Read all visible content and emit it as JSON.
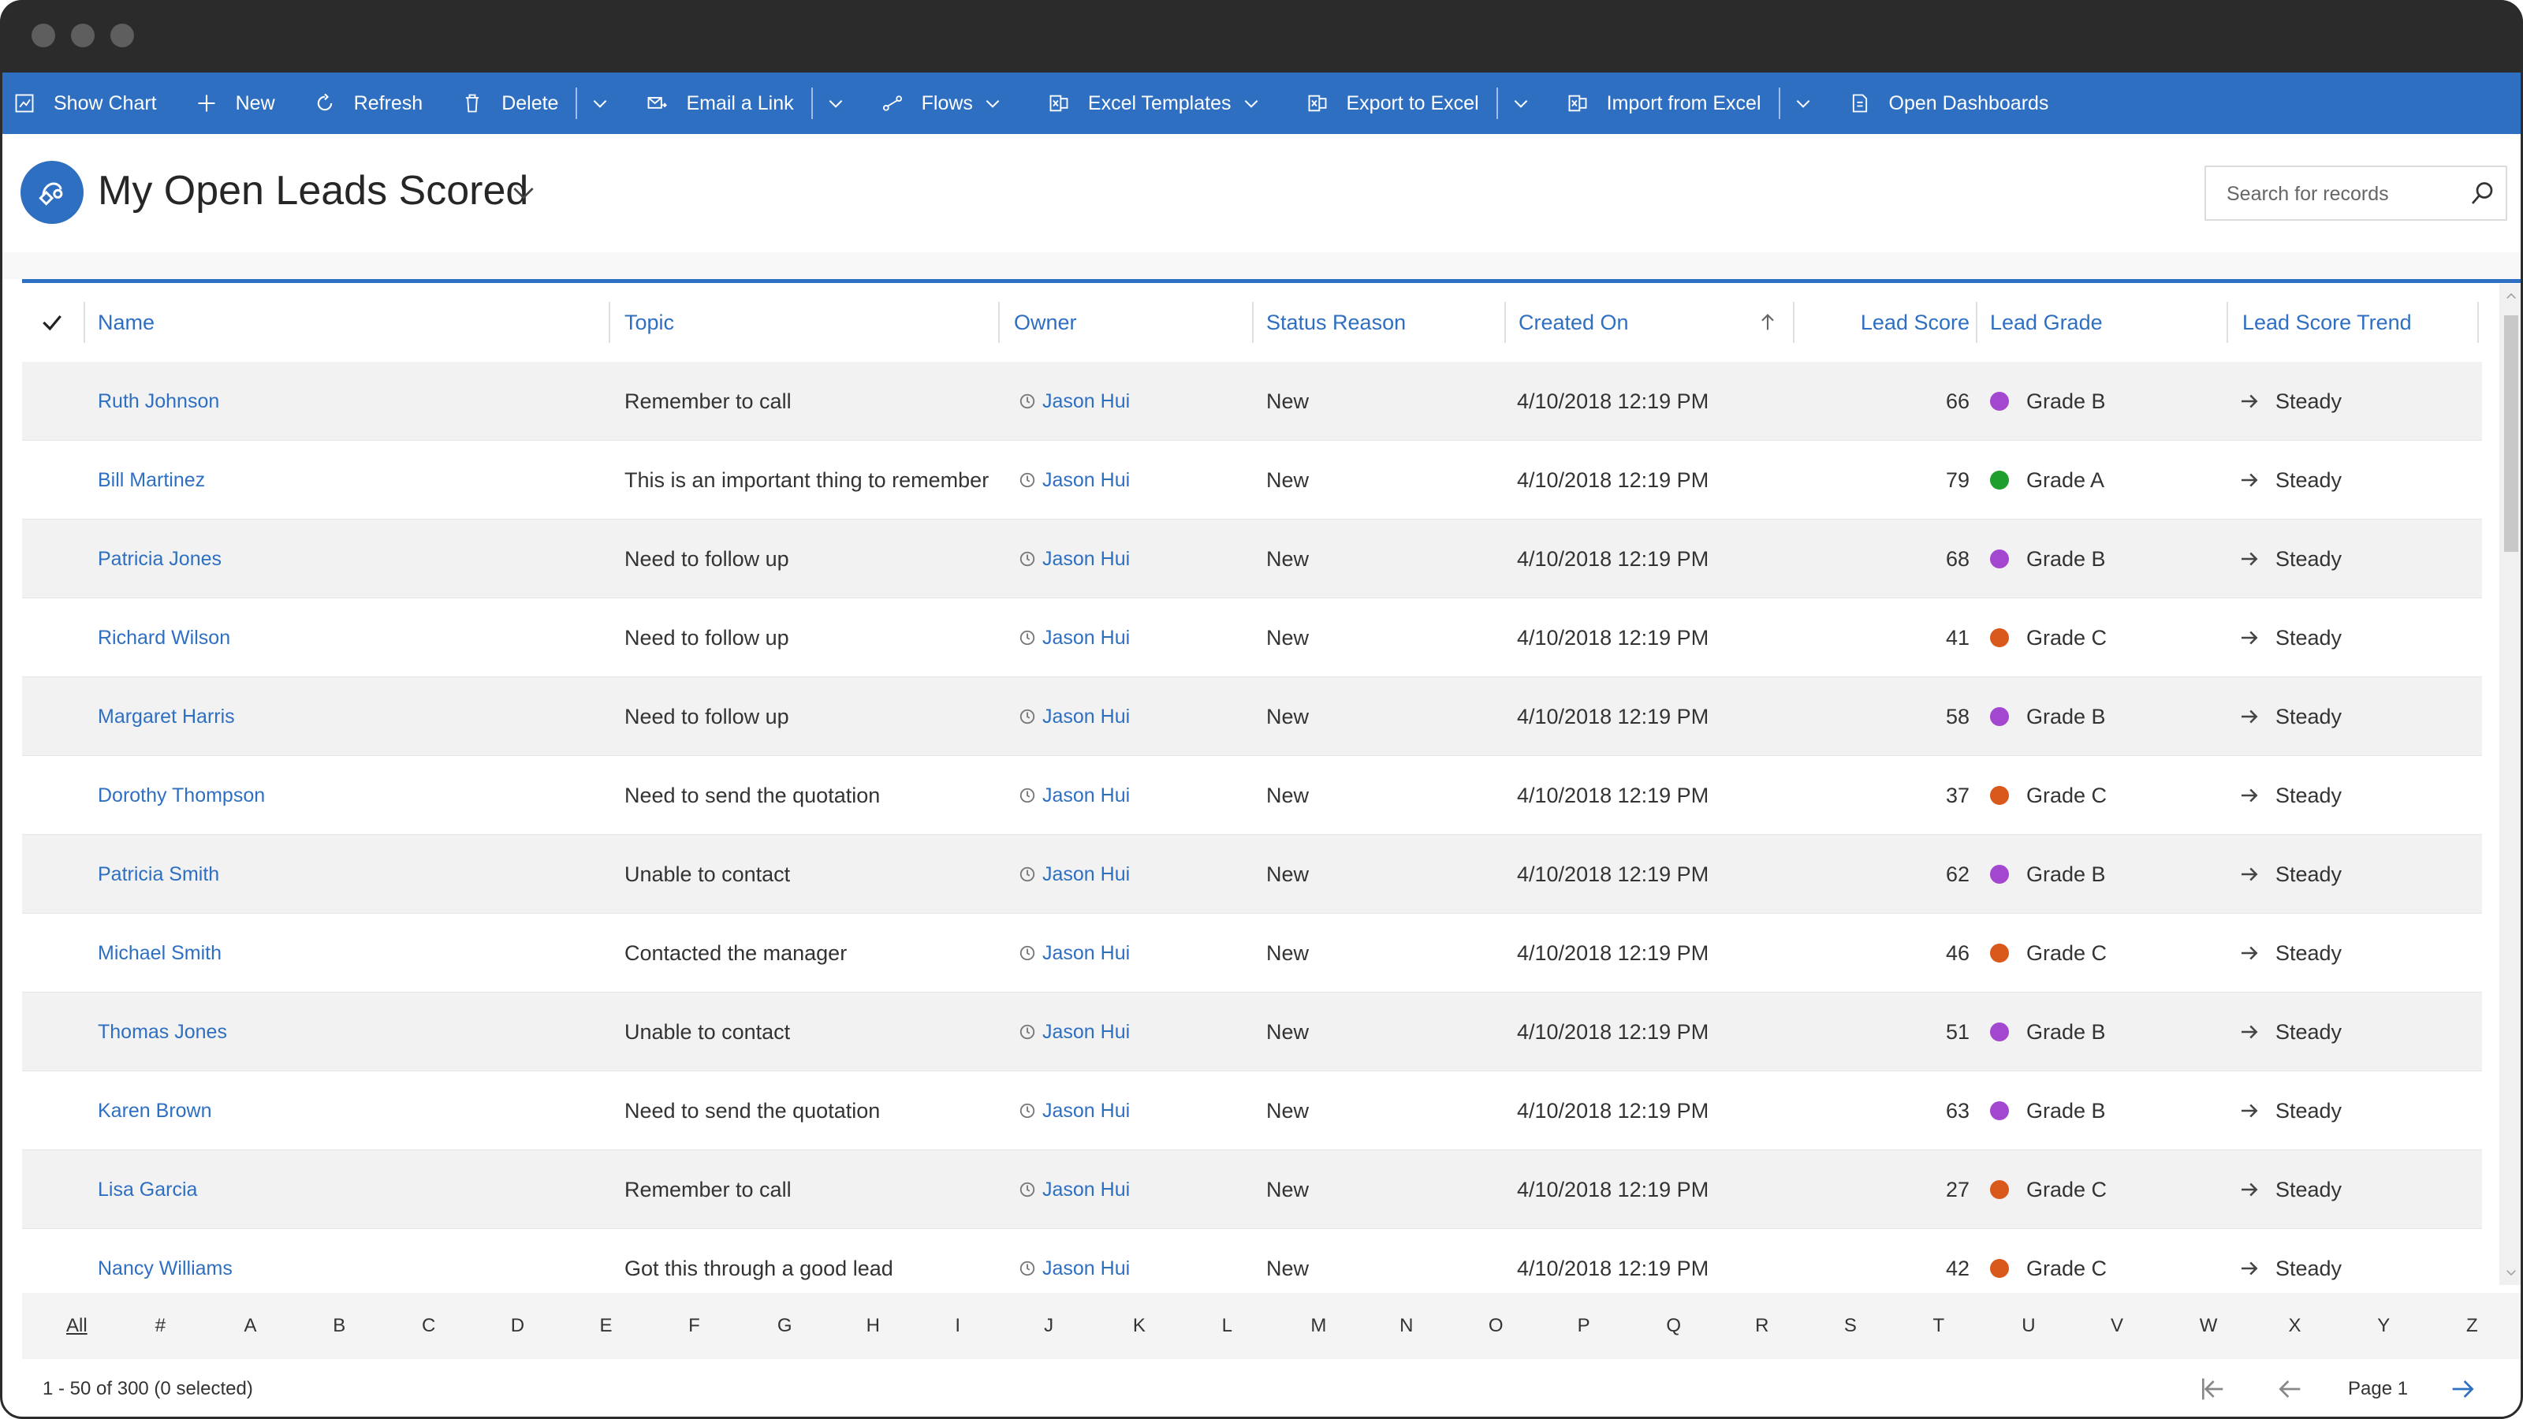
{
  "commandbar": {
    "items": [
      {
        "label": "Show Chart",
        "icon": "chart-icon"
      },
      {
        "label": "New",
        "icon": "plus-icon"
      },
      {
        "label": "Refresh",
        "icon": "refresh-icon"
      },
      {
        "label": "Delete",
        "icon": "trash-icon"
      },
      {
        "label": "Email a Link",
        "icon": "email-link-icon"
      },
      {
        "label": "Flows",
        "icon": "flows-icon"
      },
      {
        "label": "Excel Templates",
        "icon": "excel-icon"
      },
      {
        "label": "Export to Excel",
        "icon": "excel-icon"
      },
      {
        "label": "Import from Excel",
        "icon": "excel-icon"
      },
      {
        "label": "Open Dashboards",
        "icon": "dashboard-icon"
      }
    ]
  },
  "header": {
    "title": "My Open Leads Scored",
    "entity_icon": "lead-icon"
  },
  "search": {
    "placeholder": "Search for records"
  },
  "grid": {
    "columns": [
      "Name",
      "Topic",
      "Owner",
      "Status Reason",
      "Created On",
      "Lead Score",
      "Lead Grade",
      "Lead Score Trend"
    ],
    "sort_indicator": "arrow-up-icon",
    "rows": [
      {
        "name": "Ruth Johnson",
        "topic": "Remember to call",
        "owner": "Jason Hui",
        "status": "New",
        "created": "4/10/2018 12:19 PM",
        "score": "66",
        "grade": "Grade B",
        "grade_color": "#a347d1",
        "trend": "Steady"
      },
      {
        "name": "Bill Martinez",
        "topic": "This is an important thing to remember",
        "owner": "Jason Hui",
        "status": "New",
        "created": "4/10/2018 12:19 PM",
        "score": "79",
        "grade": "Grade A",
        "grade_color": "#1e9e2c",
        "trend": "Steady"
      },
      {
        "name": "Patricia Jones",
        "topic": "Need to follow up",
        "owner": "Jason Hui",
        "status": "New",
        "created": "4/10/2018 12:19 PM",
        "score": "68",
        "grade": "Grade B",
        "grade_color": "#a347d1",
        "trend": "Steady"
      },
      {
        "name": "Richard Wilson",
        "topic": "Need to follow up",
        "owner": "Jason Hui",
        "status": "New",
        "created": "4/10/2018 12:19 PM",
        "score": "41",
        "grade": "Grade C",
        "grade_color": "#d9591b",
        "trend": "Steady"
      },
      {
        "name": "Margaret Harris",
        "topic": "Need to follow up",
        "owner": "Jason Hui",
        "status": "New",
        "created": "4/10/2018 12:19 PM",
        "score": "58",
        "grade": "Grade B",
        "grade_color": "#a347d1",
        "trend": "Steady"
      },
      {
        "name": "Dorothy Thompson",
        "topic": "Need to send the quotation",
        "owner": "Jason Hui",
        "status": "New",
        "created": "4/10/2018 12:19 PM",
        "score": "37",
        "grade": "Grade C",
        "grade_color": "#d9591b",
        "trend": "Steady"
      },
      {
        "name": "Patricia Smith",
        "topic": "Unable to contact",
        "owner": "Jason Hui",
        "status": "New",
        "created": "4/10/2018 12:19 PM",
        "score": "62",
        "grade": "Grade B",
        "grade_color": "#a347d1",
        "trend": "Steady"
      },
      {
        "name": "Michael Smith",
        "topic": "Contacted the manager",
        "owner": "Jason Hui",
        "status": "New",
        "created": "4/10/2018 12:19 PM",
        "score": "46",
        "grade": "Grade C",
        "grade_color": "#d9591b",
        "trend": "Steady"
      },
      {
        "name": "Thomas Jones",
        "topic": "Unable to contact",
        "owner": "Jason Hui",
        "status": "New",
        "created": "4/10/2018 12:19 PM",
        "score": "51",
        "grade": "Grade B",
        "grade_color": "#a347d1",
        "trend": "Steady"
      },
      {
        "name": "Karen Brown",
        "topic": "Need to send the quotation",
        "owner": "Jason Hui",
        "status": "New",
        "created": "4/10/2018 12:19 PM",
        "score": "63",
        "grade": "Grade B",
        "grade_color": "#a347d1",
        "trend": "Steady"
      },
      {
        "name": "Lisa Garcia",
        "topic": "Remember to call",
        "owner": "Jason Hui",
        "status": "New",
        "created": "4/10/2018 12:19 PM",
        "score": "27",
        "grade": "Grade C",
        "grade_color": "#d9591b",
        "trend": "Steady"
      },
      {
        "name": "Nancy Williams",
        "topic": "Got this through a good lead",
        "owner": "Jason Hui",
        "status": "New",
        "created": "4/10/2018 12:19 PM",
        "score": "42",
        "grade": "Grade C",
        "grade_color": "#d9591b",
        "trend": "Steady"
      }
    ]
  },
  "jumpbar": {
    "letters": [
      "All",
      "#",
      "A",
      "B",
      "C",
      "D",
      "E",
      "F",
      "G",
      "H",
      "I",
      "J",
      "K",
      "L",
      "M",
      "N",
      "O",
      "P",
      "Q",
      "R",
      "S",
      "T",
      "U",
      "V",
      "W",
      "X",
      "Y",
      "Z"
    ],
    "active": "All"
  },
  "footer": {
    "count_text": "1 - 50 of 300 (0 selected)",
    "page_label": "Page 1"
  },
  "colors": {
    "accent": "#2e6fc2",
    "titlebar": "#2b2b2b"
  }
}
